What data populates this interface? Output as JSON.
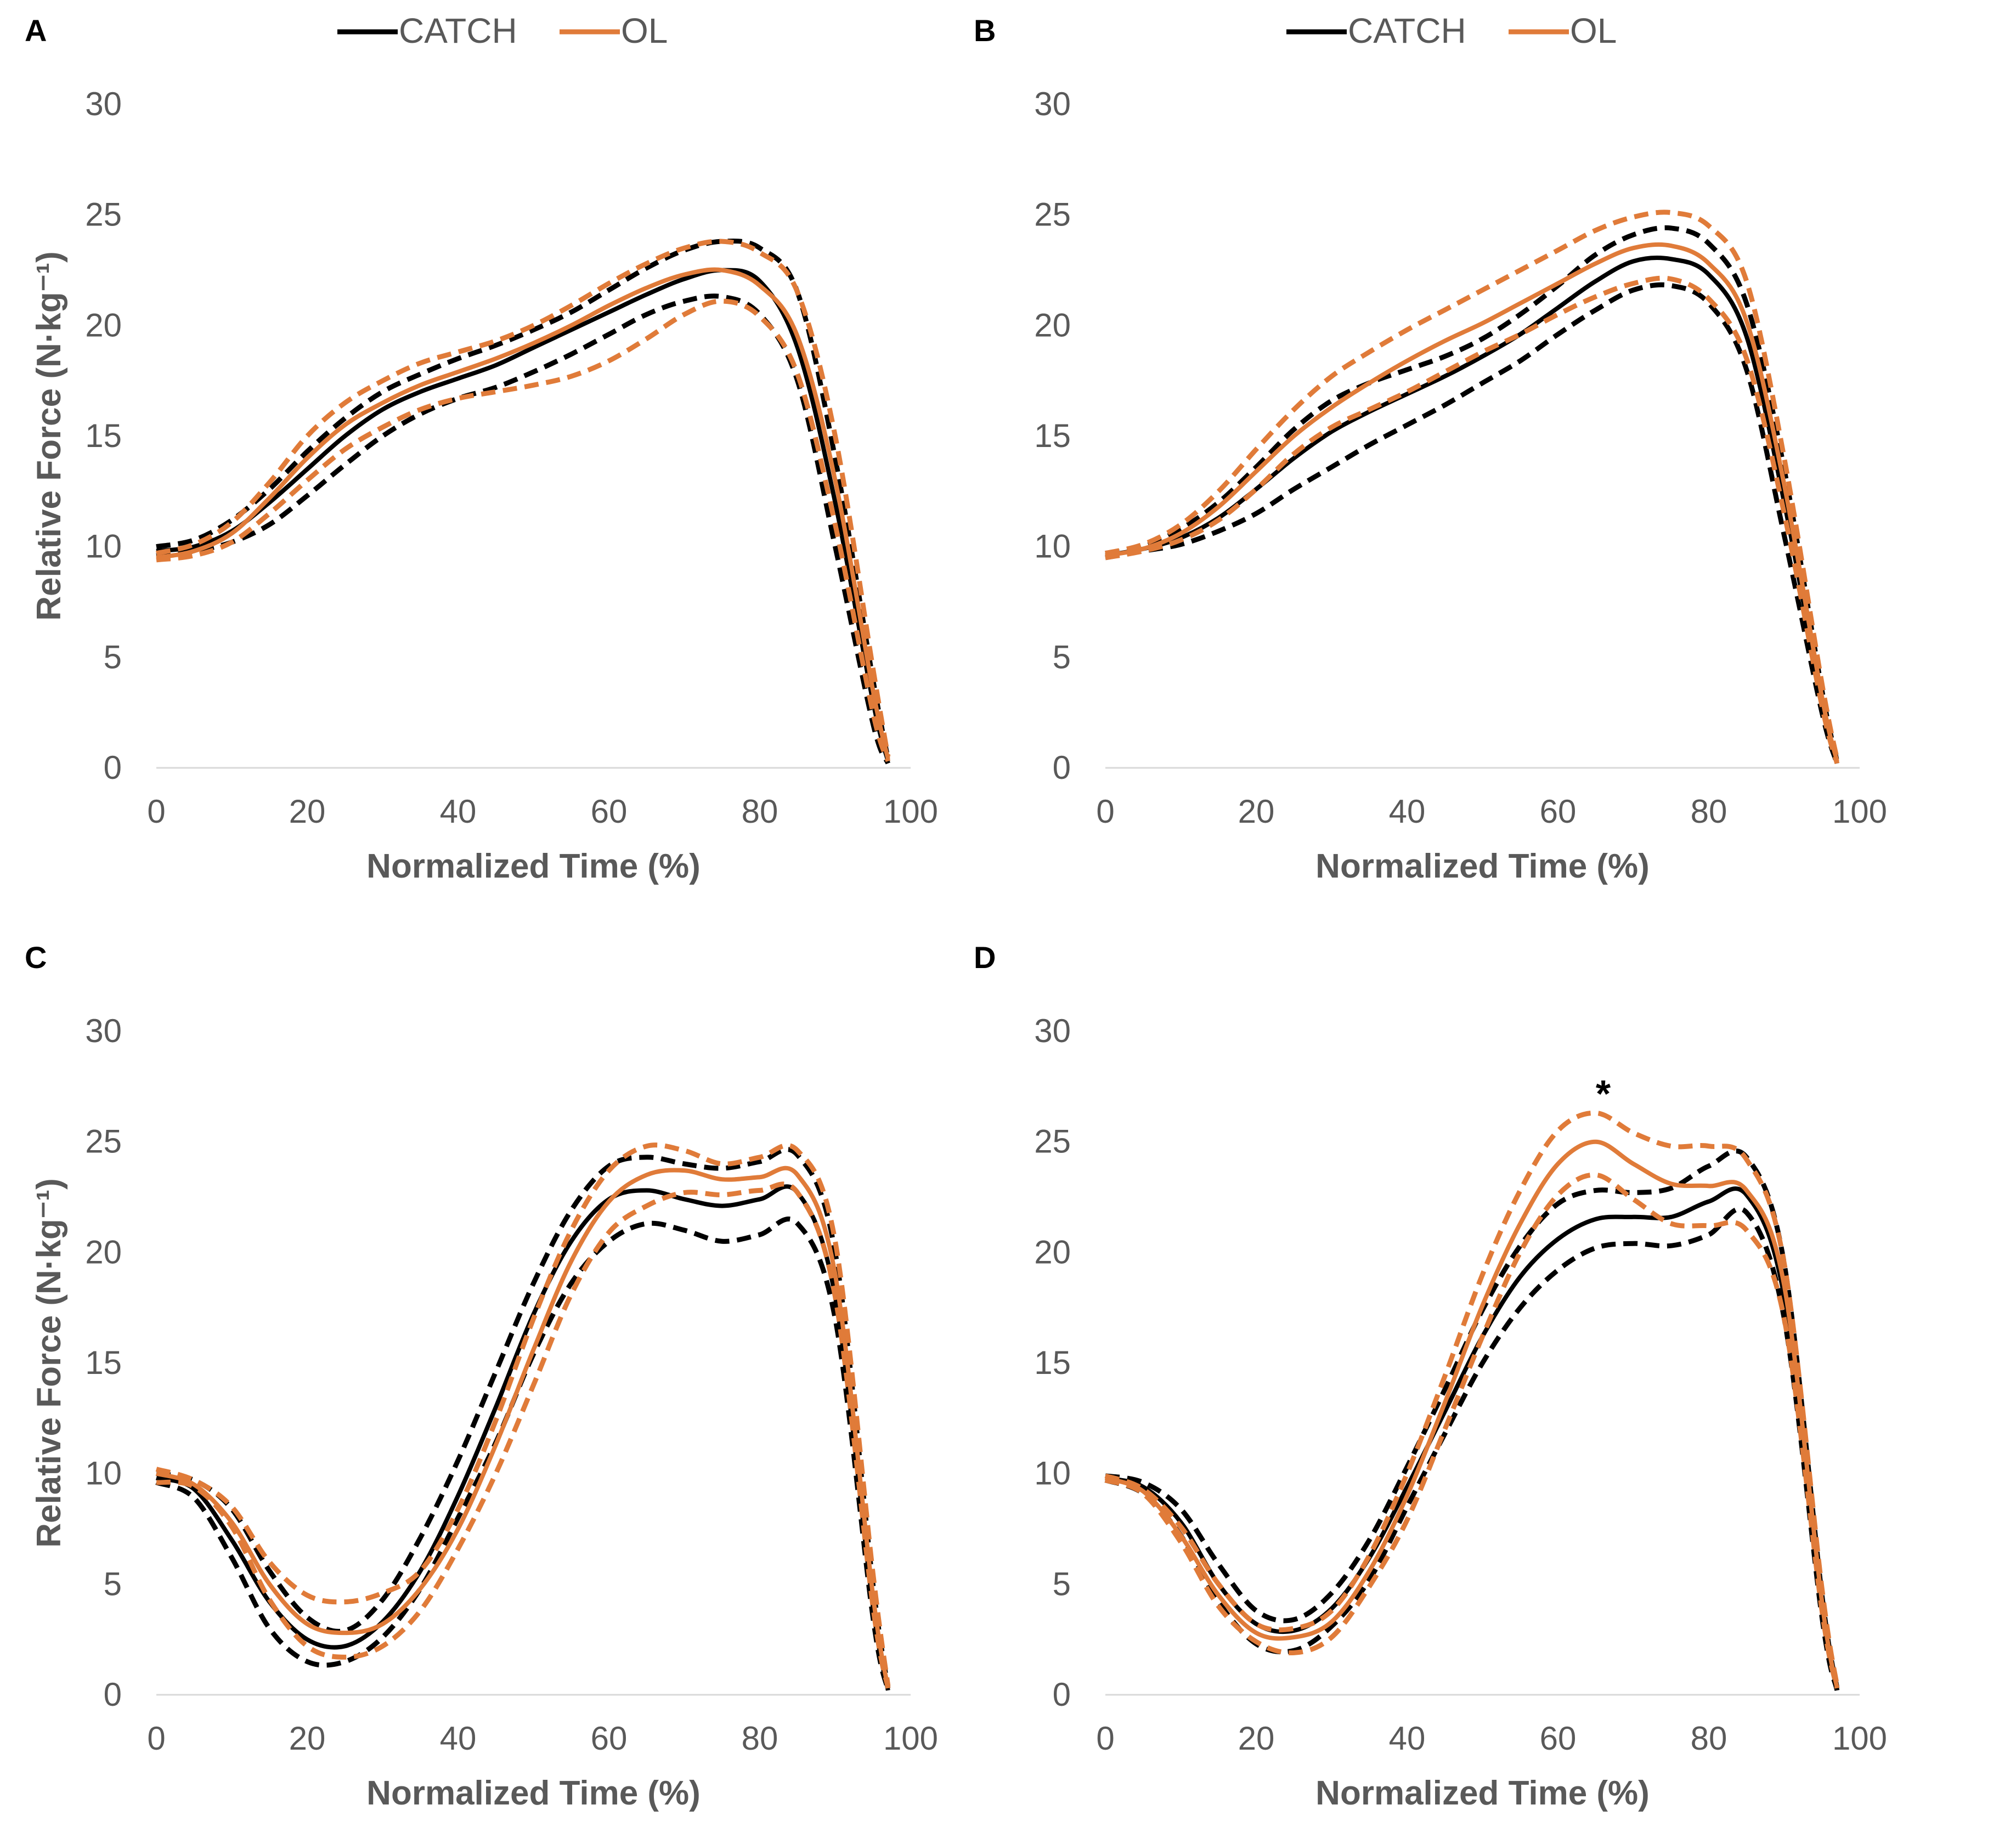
{
  "chart_data": [
    {
      "type": "line",
      "panel_label": "A",
      "xlabel": "Normalized Time (%)",
      "ylabel": "Relative Force (N·kg⁻¹)",
      "xlim": [
        0,
        100
      ],
      "ylim": [
        0,
        30
      ],
      "x_ticks": [
        "0",
        "20",
        "40",
        "60",
        "80",
        "100"
      ],
      "y_ticks": [
        "0",
        "5",
        "10",
        "15",
        "20",
        "25",
        "30"
      ],
      "annotation": "",
      "legend": [
        {
          "label": "CATCH",
          "color": "#000000"
        },
        {
          "label": "OL",
          "color": "#E07B39"
        }
      ],
      "x": [
        0,
        5,
        10,
        15,
        20,
        25,
        30,
        35,
        40,
        45,
        50,
        55,
        60,
        65,
        70,
        75,
        80,
        85,
        90,
        95,
        97
      ],
      "series": [
        {
          "name": "CATCH mean",
          "color": "#000000",
          "dash": false,
          "values": [
            9.8,
            10.0,
            10.7,
            12.0,
            13.5,
            15.0,
            16.2,
            17.0,
            17.6,
            18.2,
            19.0,
            19.8,
            20.6,
            21.4,
            22.1,
            22.5,
            22.0,
            19.0,
            12.0,
            3.0,
            0.3
          ]
        },
        {
          "name": "CATCH +SD",
          "color": "#000000",
          "dash": true,
          "values": [
            10.0,
            10.3,
            11.2,
            12.6,
            14.3,
            15.8,
            17.0,
            17.8,
            18.5,
            19.1,
            19.8,
            20.6,
            21.6,
            22.6,
            23.4,
            23.8,
            23.5,
            21.5,
            14.0,
            4.0,
            0.4
          ]
        },
        {
          "name": "CATCH -SD",
          "color": "#000000",
          "dash": true,
          "values": [
            9.6,
            9.8,
            10.2,
            11.0,
            12.3,
            13.7,
            15.0,
            16.0,
            16.7,
            17.2,
            17.9,
            18.7,
            19.6,
            20.5,
            21.1,
            21.3,
            20.5,
            17.5,
            10.0,
            2.0,
            0.2
          ]
        },
        {
          "name": "OL mean",
          "color": "#E07B39",
          "dash": false,
          "values": [
            9.5,
            9.8,
            10.6,
            12.2,
            14.0,
            15.5,
            16.5,
            17.3,
            17.9,
            18.5,
            19.2,
            20.0,
            20.9,
            21.7,
            22.3,
            22.5,
            21.8,
            19.5,
            13.0,
            3.5,
            0.4
          ]
        },
        {
          "name": "OL +SD",
          "color": "#E07B39",
          "dash": true,
          "values": [
            9.7,
            10.1,
            11.1,
            12.9,
            15.0,
            16.5,
            17.5,
            18.3,
            18.8,
            19.3,
            20.0,
            20.9,
            21.9,
            22.8,
            23.5,
            23.8,
            23.3,
            21.5,
            15.0,
            4.5,
            0.5
          ]
        },
        {
          "name": "OL -SD",
          "color": "#E07B39",
          "dash": true,
          "values": [
            9.4,
            9.6,
            10.2,
            11.5,
            13.0,
            14.4,
            15.4,
            16.2,
            16.7,
            17.0,
            17.3,
            17.7,
            18.4,
            19.4,
            20.5,
            21.1,
            20.4,
            17.8,
            11.0,
            2.5,
            0.3
          ]
        }
      ]
    },
    {
      "type": "line",
      "panel_label": "B",
      "xlabel": "Normalized Time (%)",
      "ylabel": "",
      "xlim": [
        0,
        100
      ],
      "ylim": [
        0,
        30
      ],
      "x_ticks": [
        "0",
        "20",
        "40",
        "60",
        "80",
        "100"
      ],
      "y_ticks": [
        "0",
        "5",
        "10",
        "15",
        "20",
        "25",
        "30"
      ],
      "annotation": "",
      "legend": [
        {
          "label": "CATCH",
          "color": "#000000"
        },
        {
          "label": "OL",
          "color": "#E07B39"
        }
      ],
      "x": [
        0,
        5,
        10,
        15,
        20,
        25,
        30,
        35,
        40,
        45,
        50,
        55,
        60,
        65,
        70,
        75,
        80,
        85,
        90,
        95,
        97
      ],
      "series": [
        {
          "name": "CATCH mean",
          "color": "#000000",
          "dash": false,
          "values": [
            9.6,
            9.9,
            10.4,
            11.3,
            12.6,
            14.0,
            15.2,
            16.1,
            16.9,
            17.7,
            18.6,
            19.6,
            20.8,
            22.0,
            22.9,
            23.0,
            22.3,
            19.5,
            12.0,
            3.0,
            0.2
          ]
        },
        {
          "name": "CATCH +SD",
          "color": "#000000",
          "dash": true,
          "values": [
            9.7,
            10.0,
            10.8,
            12.0,
            13.6,
            15.3,
            16.6,
            17.4,
            18.0,
            18.6,
            19.4,
            20.5,
            21.8,
            23.2,
            24.1,
            24.4,
            23.7,
            21.0,
            13.5,
            3.5,
            0.3
          ]
        },
        {
          "name": "CATCH -SD",
          "color": "#000000",
          "dash": true,
          "values": [
            9.5,
            9.8,
            10.1,
            10.7,
            11.5,
            12.6,
            13.6,
            14.6,
            15.5,
            16.4,
            17.4,
            18.4,
            19.6,
            20.7,
            21.6,
            21.8,
            21.0,
            18.0,
            10.5,
            2.5,
            0.2
          ]
        },
        {
          "name": "OL mean",
          "color": "#E07B39",
          "dash": false,
          "values": [
            9.6,
            9.9,
            10.6,
            11.8,
            13.4,
            15.0,
            16.3,
            17.4,
            18.4,
            19.3,
            20.1,
            21.0,
            21.9,
            22.8,
            23.5,
            23.6,
            22.8,
            20.2,
            12.8,
            3.2,
            0.3
          ]
        },
        {
          "name": "OL +SD",
          "color": "#E07B39",
          "dash": true,
          "values": [
            9.7,
            10.1,
            11.0,
            12.5,
            14.4,
            16.2,
            17.7,
            18.8,
            19.8,
            20.7,
            21.6,
            22.5,
            23.4,
            24.3,
            24.9,
            25.1,
            24.5,
            22.0,
            14.0,
            3.8,
            0.4
          ]
        },
        {
          "name": "OL -SD",
          "color": "#E07B39",
          "dash": true,
          "values": [
            9.5,
            9.8,
            10.3,
            11.2,
            12.6,
            14.2,
            15.4,
            16.2,
            17.0,
            17.9,
            18.8,
            19.6,
            20.5,
            21.3,
            21.9,
            22.1,
            21.2,
            18.5,
            11.5,
            2.8,
            0.2
          ]
        }
      ]
    },
    {
      "type": "line",
      "panel_label": "C",
      "xlabel": "Normalized Time (%)",
      "ylabel": "Relative Force (N·kg⁻¹)",
      "xlim": [
        0,
        100
      ],
      "ylim": [
        0,
        30
      ],
      "x_ticks": [
        "0",
        "20",
        "40",
        "60",
        "80",
        "100"
      ],
      "y_ticks": [
        "0",
        "5",
        "10",
        "15",
        "20",
        "25",
        "30"
      ],
      "annotation": "",
      "legend": [],
      "x": [
        0,
        5,
        10,
        15,
        20,
        25,
        30,
        35,
        40,
        45,
        50,
        55,
        60,
        65,
        70,
        75,
        80,
        85,
        90,
        95,
        97
      ],
      "series": [
        {
          "name": "CATCH mean",
          "color": "#000000",
          "dash": false,
          "values": [
            9.8,
            9.3,
            7.0,
            4.2,
            2.5,
            2.2,
            3.3,
            5.6,
            9.0,
            13.0,
            17.2,
            20.5,
            22.4,
            22.8,
            22.4,
            22.1,
            22.4,
            22.7,
            18.0,
            4.0,
            0.2
          ]
        },
        {
          "name": "CATCH +SD",
          "color": "#000000",
          "dash": true,
          "values": [
            10.0,
            9.7,
            8.4,
            5.6,
            3.5,
            2.9,
            4.3,
            7.1,
            10.6,
            14.6,
            18.6,
            21.9,
            23.9,
            24.3,
            24.0,
            23.8,
            24.1,
            24.4,
            20.0,
            5.0,
            0.3
          ]
        },
        {
          "name": "CATCH -SD",
          "color": "#000000",
          "dash": true,
          "values": [
            9.6,
            8.9,
            6.2,
            3.0,
            1.5,
            1.5,
            2.6,
            4.8,
            8.0,
            11.4,
            15.4,
            18.6,
            20.5,
            21.3,
            21.0,
            20.5,
            20.8,
            21.3,
            17.0,
            3.5,
            0.2
          ]
        },
        {
          "name": "OL mean",
          "color": "#E07B39",
          "dash": false,
          "values": [
            10.0,
            9.5,
            7.8,
            5.0,
            3.2,
            2.8,
            3.2,
            4.8,
            7.5,
            11.3,
            15.6,
            19.6,
            22.3,
            23.5,
            23.7,
            23.3,
            23.4,
            23.5,
            19.0,
            4.5,
            0.3
          ]
        },
        {
          "name": "OL +SD",
          "color": "#E07B39",
          "dash": true,
          "values": [
            10.2,
            9.7,
            8.5,
            6.0,
            4.5,
            4.2,
            4.6,
            5.6,
            8.4,
            12.4,
            17.0,
            21.0,
            23.7,
            24.8,
            24.6,
            24.0,
            24.3,
            24.6,
            20.5,
            5.5,
            0.4
          ]
        },
        {
          "name": "OL -SD",
          "color": "#E07B39",
          "dash": true,
          "values": [
            9.6,
            9.4,
            7.6,
            4.3,
            2.2,
            1.7,
            2.2,
            3.8,
            6.6,
            10.0,
            14.0,
            18.1,
            20.9,
            22.1,
            22.7,
            22.6,
            22.8,
            22.7,
            18.0,
            4.0,
            0.3
          ]
        }
      ]
    },
    {
      "type": "line",
      "panel_label": "D",
      "xlabel": "Normalized Time (%)",
      "ylabel": "",
      "xlim": [
        0,
        100
      ],
      "ylim": [
        0,
        30
      ],
      "x_ticks": [
        "0",
        "20",
        "40",
        "60",
        "80",
        "100"
      ],
      "y_ticks": [
        "0",
        "5",
        "10",
        "15",
        "20",
        "25",
        "30"
      ],
      "annotation": "*",
      "annotation_x": 66,
      "annotation_y": 27.2,
      "legend": [],
      "x": [
        0,
        5,
        10,
        15,
        20,
        25,
        30,
        35,
        40,
        45,
        50,
        55,
        60,
        65,
        70,
        75,
        80,
        85,
        90,
        95,
        97
      ],
      "series": [
        {
          "name": "CATCH mean",
          "color": "#000000",
          "dash": false,
          "values": [
            9.8,
            9.4,
            7.8,
            5.0,
            3.2,
            2.9,
            3.9,
            6.2,
            9.4,
            12.8,
            16.2,
            18.9,
            20.6,
            21.5,
            21.6,
            21.6,
            22.3,
            22.6,
            18.0,
            4.0,
            0.2
          ]
        },
        {
          "name": "CATCH +SD",
          "color": "#000000",
          "dash": true,
          "values": [
            9.9,
            9.6,
            8.4,
            5.9,
            3.8,
            3.4,
            4.6,
            7.0,
            10.3,
            13.8,
            17.4,
            20.3,
            22.2,
            22.8,
            22.7,
            22.9,
            23.9,
            24.3,
            19.5,
            4.5,
            0.3
          ]
        },
        {
          "name": "CATCH -SD",
          "color": "#000000",
          "dash": true,
          "values": [
            9.7,
            9.1,
            7.2,
            4.2,
            2.3,
            2.0,
            3.1,
            5.2,
            8.5,
            11.8,
            15.0,
            17.5,
            19.2,
            20.2,
            20.4,
            20.3,
            20.8,
            21.8,
            17.0,
            3.5,
            0.2
          ]
        },
        {
          "name": "OL mean",
          "color": "#E07B39",
          "dash": false,
          "values": [
            9.8,
            9.2,
            7.2,
            4.5,
            2.8,
            2.6,
            3.3,
            5.6,
            9.0,
            13.2,
            17.6,
            21.3,
            24.0,
            25.0,
            24.0,
            23.1,
            23.0,
            22.8,
            18.5,
            4.2,
            0.3
          ]
        },
        {
          "name": "OL +SD",
          "color": "#E07B39",
          "dash": true,
          "values": [
            9.9,
            9.3,
            7.6,
            5.0,
            3.2,
            3.0,
            3.8,
            6.3,
            10.0,
            14.4,
            19.0,
            22.8,
            25.5,
            26.3,
            25.4,
            24.8,
            24.8,
            24.2,
            19.5,
            4.8,
            0.4
          ]
        },
        {
          "name": "OL -SD",
          "color": "#E07B39",
          "dash": true,
          "values": [
            9.7,
            9.1,
            6.9,
            4.0,
            2.4,
            1.9,
            2.6,
            4.9,
            7.9,
            12.0,
            16.2,
            20.0,
            22.6,
            23.5,
            22.4,
            21.3,
            21.2,
            21.0,
            17.0,
            3.8,
            0.3
          ]
        }
      ]
    }
  ]
}
